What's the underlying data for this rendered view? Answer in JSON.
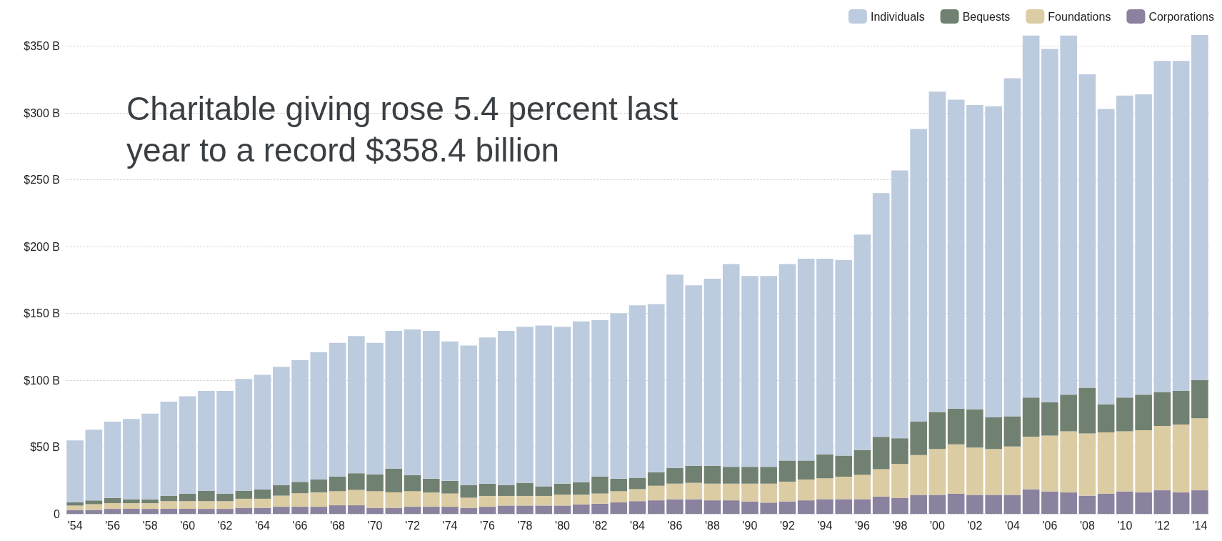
{
  "chart_data": {
    "type": "bar",
    "title": "Charitable giving rose 5.4 percent last year to a record $358.4 billion",
    "stacked": true,
    "legend": "top right",
    "grid": "y",
    "categories": [
      "'54",
      null,
      "'56",
      null,
      "'58",
      null,
      "'60",
      null,
      "'62",
      null,
      "'64",
      null,
      "'66",
      null,
      "'68",
      null,
      "'70",
      null,
      "'72",
      null,
      "'74",
      null,
      "'76",
      null,
      "'78",
      null,
      "'80",
      null,
      "'82",
      null,
      "'84",
      null,
      "'86",
      null,
      "'88",
      null,
      "'90",
      null,
      "'92",
      null,
      "'94",
      null,
      "'96",
      null,
      "'98",
      null,
      "'00",
      null,
      "'02",
      null,
      "'04",
      null,
      "'06",
      null,
      "'08",
      null,
      "'10",
      null,
      "'12",
      null,
      "'14"
    ],
    "ylim": [
      0,
      360
    ],
    "yticks": [
      {
        "value": 0,
        "label": "0"
      },
      {
        "value": 50,
        "label": "$50 B"
      },
      {
        "value": 100,
        "label": "$100 B"
      },
      {
        "value": 150,
        "label": "$150 B"
      },
      {
        "value": 200,
        "label": "$200 B"
      },
      {
        "value": 250,
        "label": "$250 B"
      },
      {
        "value": 300,
        "label": "$300 B"
      },
      {
        "value": 350,
        "label": "$350 B"
      }
    ],
    "series": [
      {
        "name": "Corporations",
        "color": "#8a829e",
        "values": [
          2.9,
          3.0,
          3.7,
          3.7,
          3.7,
          3.7,
          3.7,
          3.7,
          3.7,
          4.5,
          4.5,
          5.3,
          5.3,
          5.3,
          6.4,
          6.4,
          4.5,
          4.5,
          5.3,
          5.3,
          5.3,
          4.5,
          5.3,
          6.2,
          6.2,
          6.2,
          6.2,
          7,
          7.6,
          8.6,
          9.5,
          10.1,
          10.9,
          10.9,
          10.1,
          10.1,
          9.3,
          8.4,
          9.3,
          10.1,
          11,
          11,
          11,
          13,
          11.8,
          14.2,
          14.2,
          15,
          14.2,
          14.2,
          14.2,
          18.4,
          16.8,
          16,
          13.6,
          15,
          16.8,
          16,
          17.6,
          16,
          17.6
        ]
      },
      {
        "name": "Foundations",
        "color": "#dccca3",
        "values": [
          3.3,
          4.2,
          4.3,
          4.3,
          4.3,
          5.8,
          5.8,
          5.8,
          5.8,
          6.8,
          6.8,
          8.3,
          10.1,
          10.8,
          10.5,
          11.5,
          12.4,
          11.6,
          11.6,
          10.7,
          9.9,
          7.6,
          8.1,
          7.2,
          7.2,
          7.2,
          8.2,
          7.4,
          7.6,
          8.3,
          9,
          10.9,
          11.7,
          12.3,
          12.5,
          12.5,
          13.3,
          14.2,
          14.8,
          15.6,
          15.6,
          16.8,
          18.2,
          20.4,
          25.6,
          29.8,
          34.4,
          37,
          35.4,
          34.4,
          36.2,
          39.4,
          41.8,
          45.8,
          46.6,
          46,
          45,
          46.6,
          48.2,
          50.8,
          54
        ]
      },
      {
        "name": "Bequests",
        "color": "#718171",
        "values": [
          2.4,
          2.8,
          3.9,
          2.9,
          2.9,
          3.9,
          5.5,
          7.8,
          5.5,
          6,
          7,
          8,
          8.5,
          9.6,
          11.1,
          12.5,
          12.7,
          17.6,
          12.1,
          10.3,
          9.5,
          9.3,
          9.2,
          8,
          9.8,
          7.2,
          8.2,
          9.3,
          12.8,
          9.4,
          8.5,
          10.1,
          11.8,
          12.8,
          13.4,
          12.6,
          12.6,
          12.6,
          15.8,
          14.2,
          18,
          15.8,
          18.6,
          24.2,
          19.2,
          25,
          27.6,
          26.8,
          28.6,
          23.6,
          22.6,
          29.2,
          25,
          27.4,
          34.2,
          21,
          25.2,
          26.6,
          25.4,
          25.2,
          28.4
        ]
      },
      {
        "name": "Individuals",
        "color": "#bccbde",
        "values": [
          46.4,
          53,
          57.1,
          60.1,
          64.1,
          70.6,
          73,
          74.7,
          77,
          83.7,
          85.7,
          88.4,
          91.1,
          95.3,
          100,
          102.6,
          98.4,
          103.3,
          109,
          110.7,
          104.3,
          104.6,
          109.4,
          115.6,
          116.8,
          120.4,
          117.4,
          120.3,
          117,
          123.7,
          129,
          125.9,
          144.6,
          135,
          140,
          151.8,
          142.8,
          142.8,
          147.1,
          151.1,
          146.4,
          146.4,
          161.2,
          182.4,
          200.4,
          219,
          239.8,
          231.2,
          227.8,
          232.8,
          253,
          271,
          264.4,
          268.8,
          234.6,
          221,
          226,
          224.8,
          247.8,
          247,
          258.4
        ]
      }
    ]
  }
}
